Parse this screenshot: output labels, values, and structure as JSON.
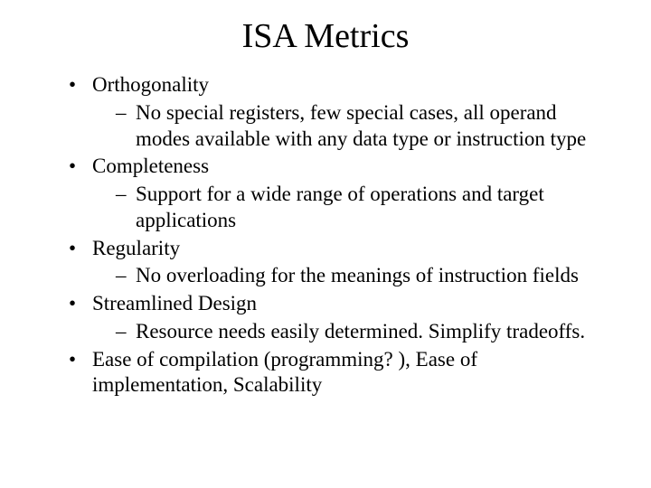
{
  "title": "ISA Metrics",
  "bullets": {
    "b0": {
      "label": "Orthogonality",
      "sub": "No special registers, few special cases, all operand modes available with any data type or instruction type"
    },
    "b1": {
      "label": "Completeness",
      "sub": "Support for a wide range of operations and target applications"
    },
    "b2": {
      "label": "Regularity",
      "sub": "No overloading for the meanings of instruction fields"
    },
    "b3": {
      "label": "Streamlined Design",
      "sub": "Resource needs easily determined. Simplify tradeoffs."
    },
    "b4": {
      "label": "Ease of compilation (programming? ), Ease of implementation, Scalability"
    }
  },
  "colors": {
    "background": "#ffffff",
    "text": "#000000"
  },
  "typography": {
    "title_fontsize_pt": 29,
    "body_fontsize_pt": 17,
    "font_family": "Times New Roman"
  }
}
